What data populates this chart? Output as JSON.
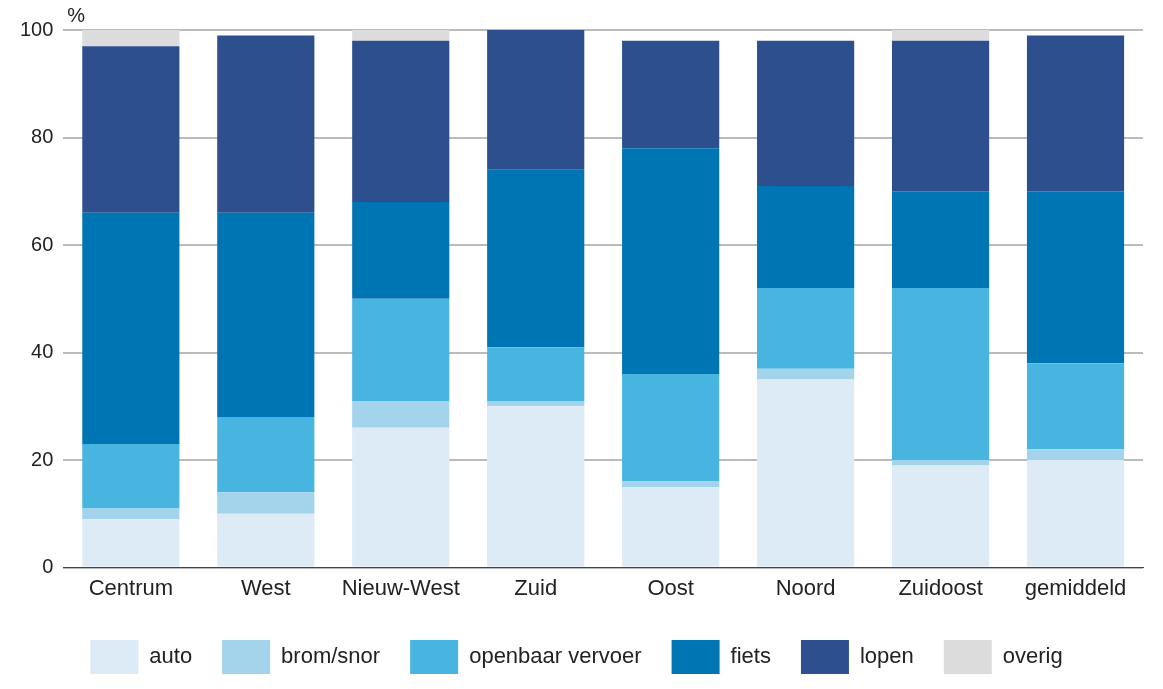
{
  "chart_data": {
    "type": "bar",
    "stacked": true,
    "ylabel": "%",
    "categories": [
      "Centrum",
      "West",
      "Nieuw-West",
      "Zuid",
      "Oost",
      "Noord",
      "Zuidoost",
      "gemiddeld"
    ],
    "series": [
      {
        "name": "auto",
        "color": "#dcebf6",
        "values": [
          9,
          10,
          26,
          30,
          15,
          35,
          19,
          20
        ]
      },
      {
        "name": "brom/snor",
        "color": "#a3d4ec",
        "values": [
          2,
          4,
          5,
          1,
          1,
          2,
          1,
          2
        ]
      },
      {
        "name": "openbaar vervoer",
        "color": "#47b5e0",
        "values": [
          12,
          14,
          19,
          10,
          20,
          15,
          32,
          16
        ]
      },
      {
        "name": "fiets",
        "color": "#0075b4",
        "values": [
          43,
          38,
          18,
          33,
          42,
          19,
          18,
          32
        ]
      },
      {
        "name": "lopen",
        "color": "#2d4f8e",
        "values": [
          31,
          33,
          30,
          26,
          20,
          27,
          28,
          29
        ]
      },
      {
        "name": "overig",
        "color": "#dcdcdc",
        "values": [
          3,
          0,
          2,
          0,
          0,
          0,
          2,
          0
        ]
      }
    ],
    "ylim": [
      0,
      100
    ],
    "yticks": [
      0,
      20,
      40,
      60,
      80,
      100
    ],
    "grid": "y",
    "legend": "bottom"
  }
}
